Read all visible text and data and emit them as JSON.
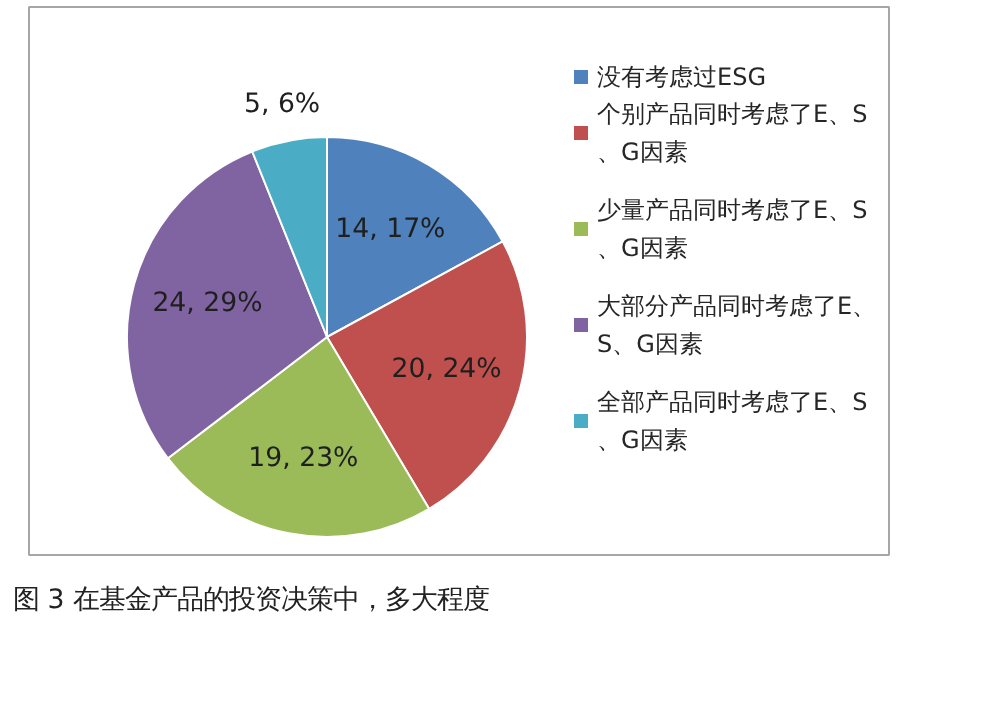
{
  "chart_data": {
    "type": "pie",
    "categories": [
      "没有考虑过ESG",
      "个别产品同时考虑了E、S、G因素",
      "少量产品同时考虑了E、S、G因素",
      "大部分产品同时考虑了E、S、G因素",
      "全部产品同时考虑了E、S、G因素"
    ],
    "values": [
      14,
      20,
      19,
      24,
      5
    ],
    "value_labels": [
      "14, 17%",
      "20, 24%",
      "19, 23%",
      "24, 29%",
      "5, 6%"
    ],
    "colors": [
      "#4f81bd",
      "#c0504d",
      "#9bbb59",
      "#8064a2",
      "#4bacc6"
    ],
    "legend": "right",
    "annotations": [
      "图 3 在基金产品的投资决策中，多大程度"
    ]
  }
}
